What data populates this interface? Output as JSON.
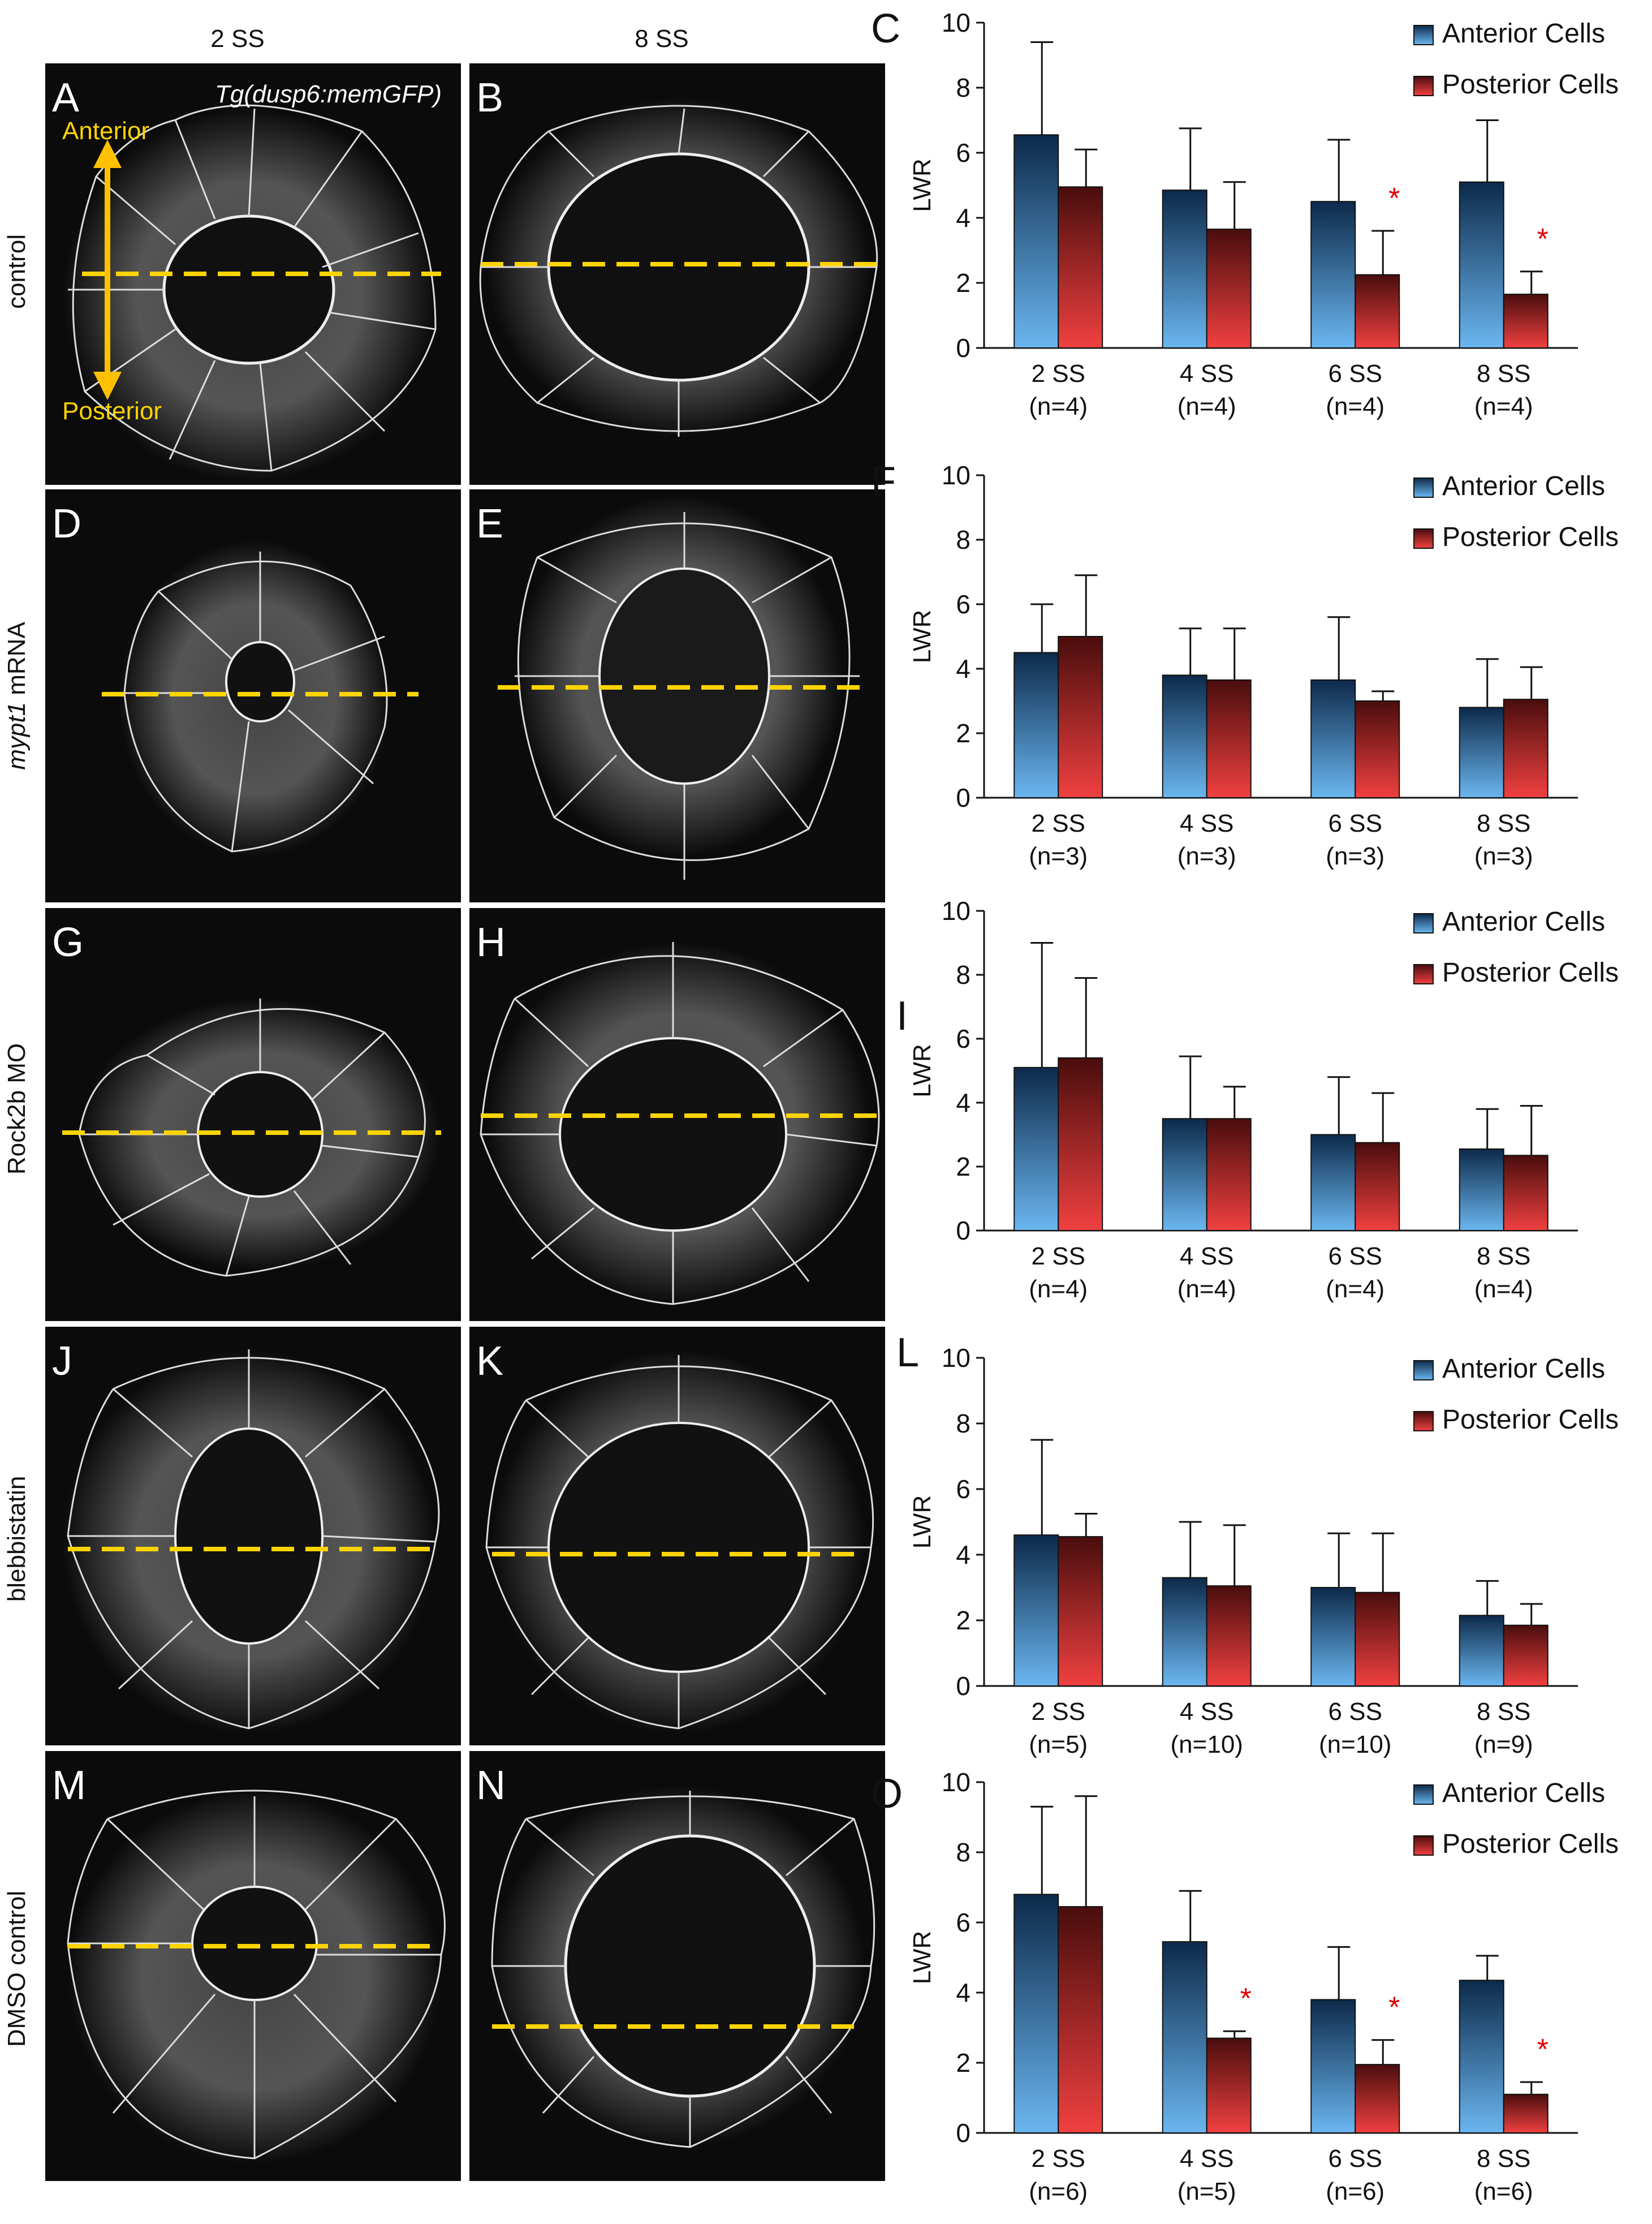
{
  "columns": [
    "2 SS",
    "8 SS"
  ],
  "rows": [
    {
      "label": "control",
      "italic": ""
    },
    {
      "label": " mRNA",
      "italic": "mypt1"
    },
    {
      "label": "Rock2b MO",
      "italic": ""
    },
    {
      "label": "blebbistatin",
      "italic": ""
    },
    {
      "label": "DMSO control",
      "italic": ""
    }
  ],
  "panels": {
    "A": "A",
    "B": "B",
    "D": "D",
    "E": "E",
    "G": "G",
    "H": "H",
    "J": "J",
    "K": "K",
    "M": "M",
    "N": "N"
  },
  "transgene": "Tg(dusp6:memGFP)",
  "axis_labels": {
    "anterior": "Anterior",
    "posterior": "Posterior"
  },
  "colors": {
    "anterior_top": "#0d2a4a",
    "anterior_bottom": "#6ab6f0",
    "posterior_top": "#4a0d0d",
    "posterior_bottom": "#f04040",
    "guide_line": "#ffd400",
    "significance": "#e00000"
  },
  "chart_data": [
    {
      "panel": "C",
      "type": "bar",
      "ylabel": "LWR",
      "ylim": [
        0,
        10
      ],
      "yticks": [
        0,
        2,
        4,
        6,
        8,
        10
      ],
      "categories": [
        "2 SS",
        "4 SS",
        "6 SS",
        "8 SS"
      ],
      "n_labels": [
        "(n=4)",
        "(n=4)",
        "(n=4)",
        "(n=4)"
      ],
      "series": [
        {
          "name": "Anterior Cells",
          "values": [
            6.55,
            4.85,
            4.5,
            5.1
          ],
          "errors": [
            2.85,
            1.9,
            1.9,
            1.9
          ]
        },
        {
          "name": "Posterior Cells",
          "values": [
            4.95,
            3.65,
            2.25,
            1.65
          ],
          "errors": [
            1.15,
            1.45,
            1.35,
            0.7
          ]
        }
      ],
      "significant": [
        "",
        "",
        "*",
        "*"
      ]
    },
    {
      "panel": "F",
      "type": "bar",
      "ylabel": "LWR",
      "ylim": [
        0,
        10
      ],
      "yticks": [
        0,
        2,
        4,
        6,
        8,
        10
      ],
      "categories": [
        "2 SS",
        "4 SS",
        "6 SS",
        "8 SS"
      ],
      "n_labels": [
        "(n=3)",
        "(n=3)",
        "(n=3)",
        "(n=3)"
      ],
      "series": [
        {
          "name": "Anterior Cells",
          "values": [
            4.5,
            3.8,
            3.65,
            2.8
          ],
          "errors": [
            1.5,
            1.45,
            1.95,
            1.5
          ]
        },
        {
          "name": "Posterior Cells",
          "values": [
            5.0,
            3.65,
            3.0,
            3.05
          ],
          "errors": [
            1.9,
            1.6,
            0.3,
            1.0
          ]
        }
      ],
      "significant": [
        "",
        "",
        "",
        ""
      ]
    },
    {
      "panel": "I",
      "type": "bar",
      "ylabel": "LWR",
      "ylim": [
        0,
        10
      ],
      "yticks": [
        0,
        2,
        4,
        6,
        8,
        10
      ],
      "categories": [
        "2 SS",
        "4 SS",
        "6 SS",
        "8 SS"
      ],
      "n_labels": [
        "(n=4)",
        "(n=4)",
        "(n=4)",
        "(n=4)"
      ],
      "series": [
        {
          "name": "Anterior Cells",
          "values": [
            5.1,
            3.5,
            3.0,
            2.55
          ],
          "errors": [
            3.9,
            1.95,
            1.8,
            1.25
          ]
        },
        {
          "name": "Posterior Cells",
          "values": [
            5.4,
            3.5,
            2.75,
            2.35
          ],
          "errors": [
            2.5,
            1.0,
            1.55,
            1.55
          ]
        }
      ],
      "significant": [
        "",
        "",
        "",
        ""
      ]
    },
    {
      "panel": "L",
      "type": "bar",
      "ylabel": "LWR",
      "ylim": [
        0,
        10
      ],
      "yticks": [
        0,
        2,
        4,
        6,
        8,
        10
      ],
      "categories": [
        "2 SS",
        "4 SS",
        "6 SS",
        "8 SS"
      ],
      "n_labels": [
        "(n=5)",
        "(n=10)",
        "(n=10)",
        "(n=9)"
      ],
      "series": [
        {
          "name": "Anterior Cells",
          "values": [
            4.6,
            3.3,
            3.0,
            2.15
          ],
          "errors": [
            2.9,
            1.7,
            1.65,
            1.05
          ]
        },
        {
          "name": "Posterior Cells",
          "values": [
            4.55,
            3.05,
            2.85,
            1.85
          ],
          "errors": [
            0.7,
            1.85,
            1.8,
            0.65
          ]
        }
      ],
      "significant": [
        "",
        "",
        "",
        ""
      ]
    },
    {
      "panel": "O",
      "type": "bar",
      "ylabel": "LWR",
      "ylim": [
        0,
        10
      ],
      "yticks": [
        0,
        2,
        4,
        6,
        8,
        10
      ],
      "categories": [
        "2 SS",
        "4 SS",
        "6 SS",
        "8 SS"
      ],
      "n_labels": [
        "(n=6)",
        "(n=5)",
        "(n=6)",
        "(n=6)"
      ],
      "series": [
        {
          "name": "Anterior Cells",
          "values": [
            6.8,
            5.45,
            3.8,
            4.35
          ],
          "errors": [
            2.5,
            1.45,
            1.5,
            0.7
          ]
        },
        {
          "name": "Posterior Cells",
          "values": [
            6.45,
            2.7,
            1.95,
            1.1
          ],
          "errors": [
            3.15,
            0.2,
            0.7,
            0.35
          ]
        }
      ],
      "significant": [
        "",
        "*",
        "*",
        "*"
      ]
    }
  ]
}
